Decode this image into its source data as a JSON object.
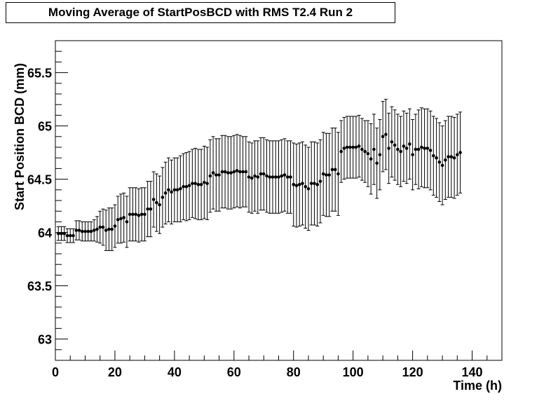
{
  "chart_data": {
    "type": "scatter",
    "title": "Moving Average of StartPosBCD with RMS T2.4 Run 2",
    "xlabel": "Time (h)",
    "ylabel": "Start Position BCD (mm)",
    "xlim": [
      0,
      150
    ],
    "ylim": [
      62.8,
      65.8
    ],
    "x_ticks": [
      0,
      20,
      40,
      60,
      80,
      100,
      120,
      140
    ],
    "x_tick_labels": [
      "0",
      "20",
      "40",
      "60",
      "80",
      "100",
      "120",
      "140"
    ],
    "y_ticks": [
      63,
      63.5,
      64,
      64.5,
      65,
      65.5
    ],
    "y_tick_labels": [
      "63",
      "63.5",
      "64",
      "64.5",
      "65",
      "65.5"
    ],
    "grid": false,
    "legend": "none",
    "marker_color": "#000000",
    "series": [
      {
        "x": [
          1,
          2,
          3,
          4,
          5,
          6,
          7,
          8,
          9,
          10,
          11,
          12,
          13,
          14,
          15,
          16,
          17,
          18,
          19,
          20,
          21,
          22,
          23,
          24,
          25,
          26,
          27,
          28,
          29,
          30,
          31,
          32,
          33,
          34,
          35,
          36,
          37,
          38,
          39,
          40,
          41,
          42,
          43,
          44,
          45,
          46,
          47,
          48,
          49,
          50,
          51,
          52,
          53,
          54,
          55,
          56,
          57,
          58,
          59,
          60,
          61,
          62,
          63,
          64,
          65,
          66,
          67,
          68,
          69,
          70,
          71,
          72,
          73,
          74,
          75,
          76,
          77,
          78,
          79,
          80,
          81,
          82,
          83,
          84,
          85,
          86,
          87,
          88,
          89,
          90,
          91,
          92,
          93,
          94,
          95,
          96,
          97,
          98,
          99,
          100,
          101,
          102,
          103,
          104,
          105,
          106,
          107,
          108,
          109,
          110,
          111,
          112,
          113,
          114,
          115,
          116,
          117,
          118,
          119,
          120,
          121,
          122,
          123,
          124,
          125,
          126,
          127,
          128,
          129,
          130,
          131,
          132,
          133,
          134,
          135,
          136
        ],
        "y": [
          63.99,
          63.99,
          63.99,
          63.97,
          63.97,
          63.97,
          64.02,
          64.02,
          64.01,
          64.01,
          64.01,
          64.01,
          64.02,
          64.03,
          64.05,
          64.05,
          64.02,
          64.03,
          64.03,
          64.06,
          64.12,
          64.13,
          64.14,
          64.1,
          64.17,
          64.17,
          64.17,
          64.16,
          64.17,
          64.17,
          64.22,
          64.22,
          64.31,
          64.28,
          64.26,
          64.33,
          64.37,
          64.4,
          64.38,
          64.4,
          64.4,
          64.41,
          64.43,
          64.43,
          64.44,
          64.46,
          64.46,
          64.45,
          64.45,
          64.47,
          64.46,
          64.53,
          64.56,
          64.54,
          64.54,
          64.57,
          64.57,
          64.56,
          64.56,
          64.57,
          64.58,
          64.57,
          64.57,
          64.57,
          64.52,
          64.51,
          64.53,
          64.52,
          64.55,
          64.55,
          64.53,
          64.52,
          64.52,
          64.52,
          64.52,
          64.53,
          64.54,
          64.52,
          64.52,
          64.45,
          64.44,
          64.45,
          64.46,
          64.43,
          64.41,
          64.46,
          64.46,
          64.45,
          64.48,
          64.55,
          64.54,
          64.54,
          64.59,
          64.59,
          64.55,
          64.76,
          64.79,
          64.8,
          64.8,
          64.8,
          64.8,
          64.81,
          64.78,
          64.76,
          64.74,
          64.69,
          64.78,
          64.65,
          64.73,
          64.9,
          64.92,
          64.79,
          64.85,
          64.82,
          64.78,
          64.76,
          64.81,
          64.79,
          64.83,
          64.73,
          64.78,
          64.78,
          64.8,
          64.79,
          64.79,
          64.77,
          64.72,
          64.7,
          64.66,
          64.63,
          64.68,
          64.71,
          64.71,
          64.7,
          64.73,
          64.75
        ],
        "y_err": [
          0.065,
          0.065,
          0.065,
          0.065,
          0.065,
          0.065,
          0.09,
          0.09,
          0.09,
          0.09,
          0.09,
          0.09,
          0.1,
          0.12,
          0.15,
          0.17,
          0.19,
          0.2,
          0.2,
          0.2,
          0.22,
          0.23,
          0.23,
          0.24,
          0.25,
          0.25,
          0.25,
          0.25,
          0.25,
          0.25,
          0.26,
          0.26,
          0.26,
          0.27,
          0.27,
          0.28,
          0.29,
          0.3,
          0.3,
          0.3,
          0.3,
          0.31,
          0.31,
          0.32,
          0.32,
          0.32,
          0.33,
          0.33,
          0.33,
          0.34,
          0.34,
          0.34,
          0.34,
          0.34,
          0.34,
          0.34,
          0.34,
          0.34,
          0.34,
          0.34,
          0.34,
          0.34,
          0.33,
          0.33,
          0.33,
          0.33,
          0.33,
          0.34,
          0.34,
          0.34,
          0.34,
          0.34,
          0.34,
          0.34,
          0.34,
          0.34,
          0.34,
          0.34,
          0.34,
          0.39,
          0.39,
          0.39,
          0.39,
          0.39,
          0.39,
          0.39,
          0.39,
          0.39,
          0.39,
          0.39,
          0.39,
          0.39,
          0.39,
          0.39,
          0.39,
          0.29,
          0.29,
          0.29,
          0.29,
          0.29,
          0.29,
          0.29,
          0.29,
          0.29,
          0.31,
          0.33,
          0.33,
          0.33,
          0.33,
          0.33,
          0.33,
          0.33,
          0.33,
          0.33,
          0.33,
          0.33,
          0.33,
          0.33,
          0.33,
          0.33,
          0.33,
          0.37,
          0.37,
          0.37,
          0.37,
          0.37,
          0.37,
          0.37,
          0.37,
          0.37,
          0.37,
          0.38,
          0.38,
          0.38,
          0.38,
          0.38
        ]
      }
    ]
  }
}
